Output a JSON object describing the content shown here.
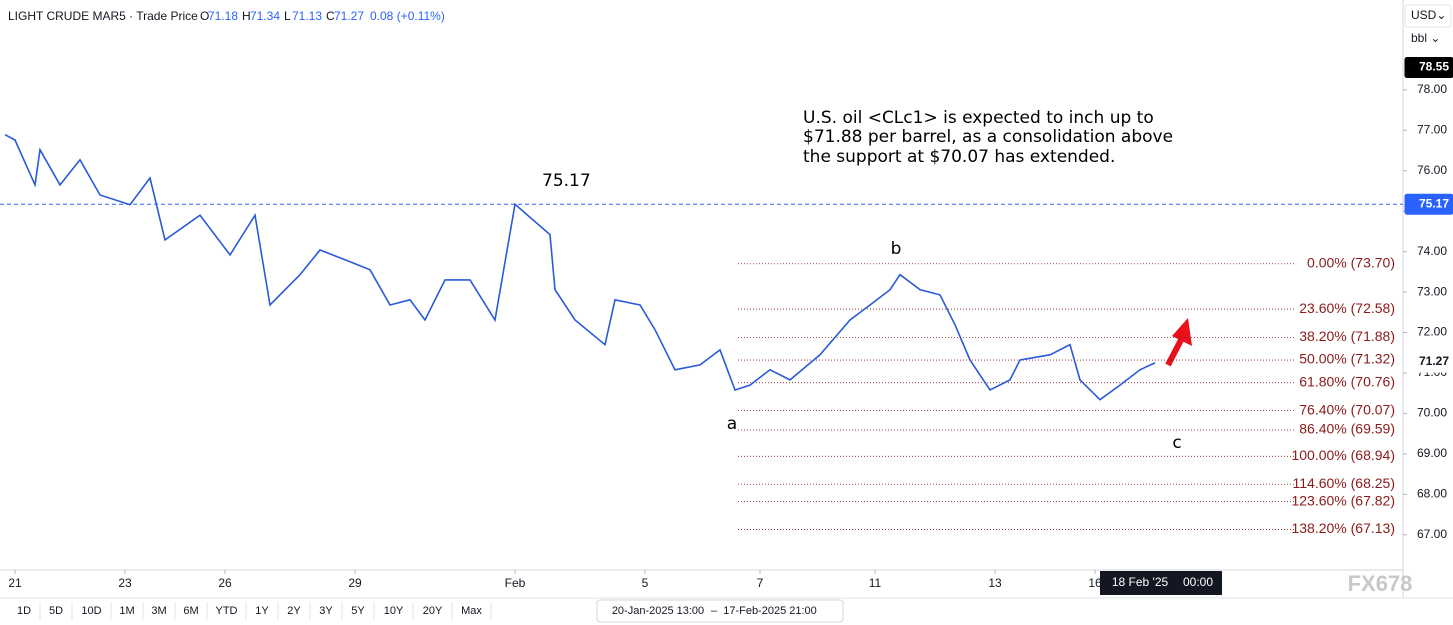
{
  "chart_data": {
    "type": "line",
    "symbol": "LIGHT CRUDE MAR5 · Trade Price",
    "ohlc": [
      {
        "label": "O",
        "value": 71.18
      },
      {
        "label": "H",
        "value": 71.34
      },
      {
        "label": "L",
        "value": 71.13
      },
      {
        "label": "C",
        "value": 71.27
      }
    ],
    "change": "0.08 (+0.11%)",
    "annotation": [
      "U.S. oil <CLc1> is expected to inch up to",
      "$71.88 per barrel, as a consolidation above",
      "the support at $70.07 has extended."
    ],
    "peak_label": "75.17",
    "wave_labels": [
      "a",
      "b",
      "c"
    ],
    "currency": "USD⌄",
    "unit": "bbl ⌄",
    "watermark": "FX678",
    "crosshair_date": "18 Feb '25",
    "crosshair_time": "00:00",
    "range_start": "20-Jan-2025 13:00",
    "range_end": "17-Feb-2025 21:00",
    "buttons": [
      "1D",
      "5D",
      "10D",
      "1M",
      "3M",
      "6M",
      "YTD",
      "1Y",
      "2Y",
      "3Y",
      "5Y",
      "10Y",
      "20Y",
      "Max"
    ],
    "series": [
      {
        "name": "LIGHT CRUDE MAR5",
        "color": "#2a5ad8",
        "x": [
          -2,
          0,
          4,
          5,
          9,
          13,
          17,
          23,
          27,
          30,
          37,
          43,
          48,
          51,
          57,
          61,
          66,
          71,
          75,
          79,
          82,
          86,
          91,
          96,
          100,
          107,
          108,
          112,
          118,
          120,
          125,
          128,
          132,
          137,
          141,
          144,
          147,
          151,
          155,
          161,
          167,
          171,
          175,
          177,
          181,
          185,
          188,
          191,
          195,
          199,
          201,
          207,
          211,
          213,
          217,
          221,
          225,
          228
        ],
        "values": [
          76.89,
          76.76,
          75.65,
          76.52,
          75.65,
          76.27,
          75.4,
          75.16,
          75.82,
          74.29,
          74.9,
          73.92,
          74.9,
          72.68,
          73.43,
          74.04,
          73.8,
          73.55,
          72.68,
          72.81,
          72.31,
          73.3,
          73.3,
          72.31,
          75.17,
          74.42,
          73.06,
          72.31,
          71.7,
          72.81,
          72.68,
          72.07,
          71.08,
          71.2,
          71.57,
          70.58,
          70.7,
          71.08,
          70.83,
          71.45,
          72.31,
          72.68,
          73.06,
          73.43,
          73.06,
          72.93,
          72.19,
          71.32,
          70.58,
          70.83,
          71.32,
          71.45,
          71.7,
          70.83,
          70.34,
          70.7,
          71.08,
          71.25
        ]
      }
    ],
    "xlim": [
      -3,
      277.6
    ],
    "xticks": [
      {
        "value": 0,
        "label": "21"
      },
      {
        "value": 22,
        "label": "23"
      },
      {
        "value": 42,
        "label": "26"
      },
      {
        "value": 68,
        "label": "29"
      },
      {
        "value": 100,
        "label": "Feb"
      },
      {
        "value": 126,
        "label": "5"
      },
      {
        "value": 149,
        "label": "7"
      },
      {
        "value": 172,
        "label": "11"
      },
      {
        "value": 196,
        "label": "13"
      },
      {
        "value": 216,
        "label": "16"
      }
    ],
    "ylim": [
      66.13,
      80.22
    ],
    "yticks": [
      {
        "value": 67,
        "label": "67.00"
      },
      {
        "value": 68,
        "label": "68.00"
      },
      {
        "value": 69,
        "label": "69.00"
      },
      {
        "value": 70,
        "label": "70.00"
      },
      {
        "value": 71,
        "label": "71.00"
      },
      {
        "value": 72,
        "label": "72.00"
      },
      {
        "value": 73,
        "label": "73.00"
      },
      {
        "value": 74,
        "label": "74.00"
      },
      {
        "value": 75,
        "label": "75.00"
      },
      {
        "value": 76,
        "label": "76.00"
      },
      {
        "value": 77,
        "label": "77.00"
      },
      {
        "value": 78,
        "label": "78.00"
      }
    ],
    "price_tags": [
      {
        "value": 78.55,
        "color": "#000000"
      },
      {
        "value": 75.17,
        "color": "#2962ff"
      },
      {
        "value": 71.27,
        "color": "#ffffff"
      }
    ],
    "hline": 75.17,
    "fib_levels": [
      {
        "label": "0.00% (73.70)",
        "value": 73.7
      },
      {
        "label": "23.60% (72.58)",
        "value": 72.58
      },
      {
        "label": "38.20% (71.88)",
        "value": 71.88
      },
      {
        "label": "50.00% (71.32)",
        "value": 71.32
      },
      {
        "label": "61.80% (70.76)",
        "value": 70.76
      },
      {
        "label": "76.40% (70.07)",
        "value": 70.07
      },
      {
        "label": "86.40% (69.59)",
        "value": 69.59
      },
      {
        "label": "100.00% (68.94)",
        "value": 68.94
      },
      {
        "label": "114.60% (68.25)",
        "value": 68.25
      },
      {
        "label": "123.60% (67.82)",
        "value": 67.82
      },
      {
        "label": "138.20% (67.13)",
        "value": 67.13
      }
    ]
  }
}
